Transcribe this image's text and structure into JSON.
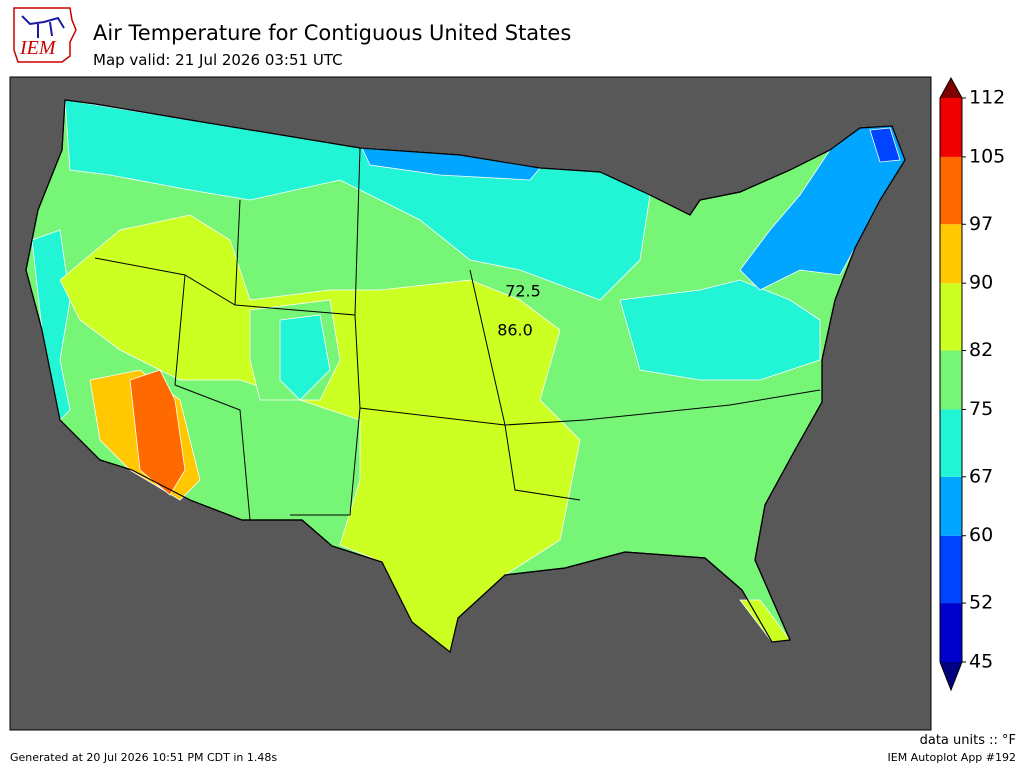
{
  "logo": {
    "text": "IEM"
  },
  "header": {
    "title": "Air Temperature for Contiguous United States",
    "subtitle": "Map valid: 21 Jul 2026 03:51 UTC"
  },
  "colorbar": {
    "ticks": [
      45,
      52,
      60,
      67,
      75,
      82,
      90,
      97,
      105,
      112
    ],
    "colors": [
      "#0000cc",
      "#0044ff",
      "#00a6ff",
      "#22f5d5",
      "#77f577",
      "#ccff22",
      "#ffc800",
      "#ff6a00",
      "#f00000"
    ],
    "under_color": "#000080",
    "over_color": "#800000"
  },
  "contour_labels": [
    "72.5",
    "86.0"
  ],
  "footer": {
    "units": "data units :: °F",
    "generated": "Generated at 20 Jul 2026 10:51 PM CDT in 1.48s",
    "app": "IEM Autoplot App #192"
  }
}
